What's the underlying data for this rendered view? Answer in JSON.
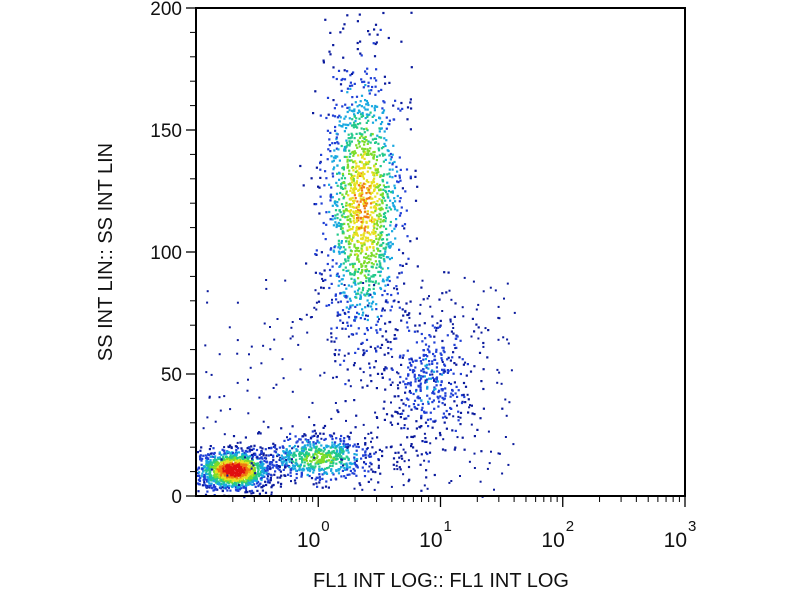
{
  "chart_data": {
    "type": "scatter",
    "title": "",
    "xlabel": "FL1 INT LOG:: FL1 INT LOG",
    "ylabel": "SS INT LIN:: SS INT LIN",
    "x_scale": "log",
    "xlim": [
      0.1,
      1000
    ],
    "ylim": [
      0,
      200
    ],
    "x_ticks": [
      {
        "base": "10",
        "exp": "0",
        "value": 1
      },
      {
        "base": "10",
        "exp": "1",
        "value": 10
      },
      {
        "base": "10",
        "exp": "2",
        "value": 100
      },
      {
        "base": "10",
        "exp": "3",
        "value": 1000
      }
    ],
    "y_ticks": [
      {
        "label": "0",
        "value": 0
      },
      {
        "label": "50",
        "value": 50
      },
      {
        "label": "100",
        "value": 100
      },
      {
        "label": "150",
        "value": 150
      },
      {
        "label": "200",
        "value": 200
      }
    ],
    "density_colors": [
      "#0a1a9c",
      "#1f3fd6",
      "#18a8e0",
      "#22c98a",
      "#7ddc2a",
      "#e8e020",
      "#f07a10",
      "#e01010"
    ],
    "grid": false,
    "legend": "none",
    "populations": [
      {
        "center_x": 0.2,
        "center_y": 11,
        "approx_x_range": [
          0.12,
          0.5
        ],
        "approx_y_range": [
          3,
          20
        ],
        "density": "highest"
      },
      {
        "center_x": 1.0,
        "center_y": 16,
        "approx_x_range": [
          0.4,
          4
        ],
        "approx_y_range": [
          8,
          28
        ],
        "density": "medium"
      },
      {
        "center_x": 2.3,
        "center_y": 120,
        "approx_x_range": [
          1,
          5
        ],
        "approx_y_range": [
          60,
          182
        ],
        "density": "high"
      },
      {
        "center_x": 8,
        "center_y": 48,
        "approx_x_range": [
          4,
          25
        ],
        "approx_y_range": [
          15,
          80
        ],
        "density": "low"
      }
    ]
  }
}
